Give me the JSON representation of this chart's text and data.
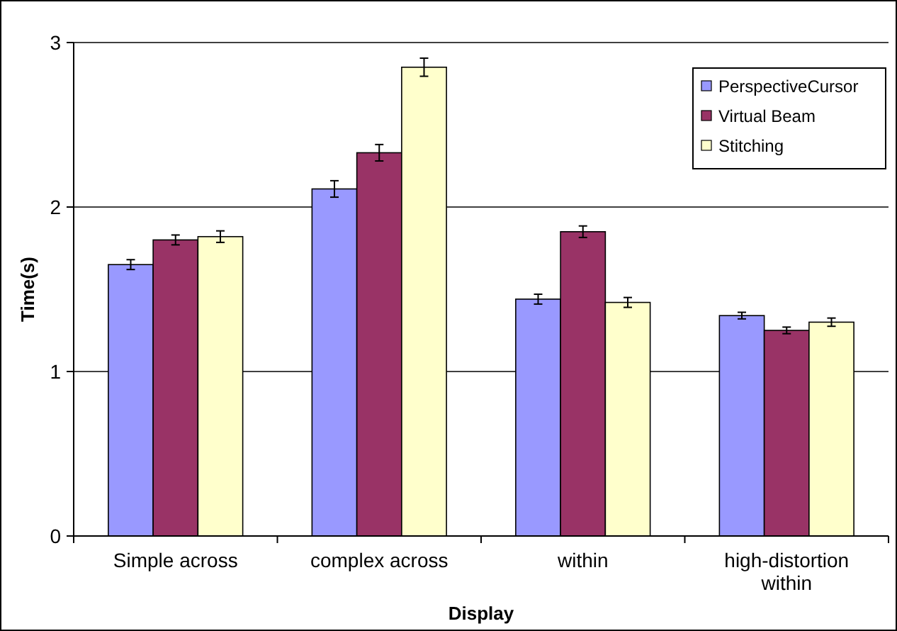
{
  "chart_data": {
    "type": "bar",
    "xlabel": "Display",
    "ylabel": "Time(s)",
    "categories": [
      "Simple across",
      "complex across",
      "within",
      "high-distortion within"
    ],
    "series": [
      {
        "name": "PerspectiveCursor",
        "color": "#9999ff",
        "values": [
          1.65,
          2.11,
          1.44,
          1.34
        ],
        "errors": [
          0.03,
          0.05,
          0.03,
          0.02
        ]
      },
      {
        "name": "Virtual Beam",
        "color": "#993366",
        "values": [
          1.8,
          2.33,
          1.85,
          1.25
        ],
        "errors": [
          0.03,
          0.05,
          0.035,
          0.02
        ]
      },
      {
        "name": "Stitching",
        "color": "#ffffcc",
        "values": [
          1.82,
          2.85,
          1.42,
          1.3
        ],
        "errors": [
          0.035,
          0.055,
          0.03,
          0.025
        ]
      }
    ],
    "ylim": [
      0,
      3
    ],
    "yticks": [
      0,
      1,
      2,
      3
    ],
    "grid": "y",
    "legend": "top right"
  }
}
